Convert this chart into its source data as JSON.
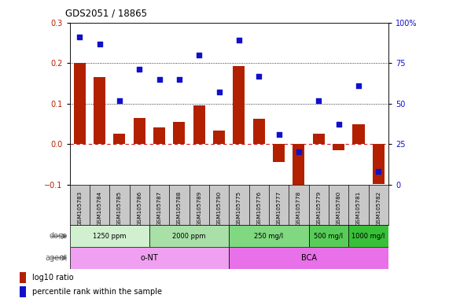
{
  "title": "GDS2051 / 18865",
  "samples": [
    "GSM105783",
    "GSM105784",
    "GSM105785",
    "GSM105786",
    "GSM105787",
    "GSM105788",
    "GSM105789",
    "GSM105790",
    "GSM105775",
    "GSM105776",
    "GSM105777",
    "GSM105778",
    "GSM105779",
    "GSM105780",
    "GSM105781",
    "GSM105782"
  ],
  "log10_ratio": [
    0.2,
    0.165,
    0.025,
    0.065,
    0.042,
    0.055,
    0.095,
    0.033,
    0.193,
    0.062,
    -0.045,
    -0.115,
    0.025,
    -0.015,
    0.048,
    -0.098
  ],
  "percentile_rank": [
    91,
    87,
    52,
    71,
    65,
    65,
    80,
    57,
    89,
    67,
    31,
    20,
    52,
    37,
    61,
    8
  ],
  "ylim_left": [
    -0.1,
    0.3
  ],
  "ylim_right": [
    0,
    100
  ],
  "yticks_left": [
    -0.1,
    0.0,
    0.1,
    0.2,
    0.3
  ],
  "yticks_right": [
    0,
    25,
    50,
    75,
    100
  ],
  "bar_color": "#b22000",
  "dot_color": "#1010cc",
  "zero_line_color": "#cc2020",
  "grid_line_color": "#000000",
  "sample_bg_color": "#c8c8c8",
  "dose_groups": [
    {
      "label": "1250 ppm",
      "start": 0,
      "end": 4,
      "color": "#d0f0d0"
    },
    {
      "label": "2000 ppm",
      "start": 4,
      "end": 8,
      "color": "#a8e0a8"
    },
    {
      "label": "250 mg/l",
      "start": 8,
      "end": 12,
      "color": "#80d880"
    },
    {
      "label": "500 mg/l",
      "start": 12,
      "end": 14,
      "color": "#58cc58"
    },
    {
      "label": "1000 mg/l",
      "start": 14,
      "end": 16,
      "color": "#38c038"
    }
  ],
  "agent_groups": [
    {
      "label": "o-NT",
      "start": 0,
      "end": 8,
      "color": "#f0a0f0"
    },
    {
      "label": "BCA",
      "start": 8,
      "end": 16,
      "color": "#e870e8"
    }
  ],
  "legend_items": [
    {
      "label": "log10 ratio",
      "color": "#b22000"
    },
    {
      "label": "percentile rank within the sample",
      "color": "#1010cc"
    }
  ],
  "dose_label": "dose",
  "agent_label": "agent",
  "row_label_color": "#606060"
}
